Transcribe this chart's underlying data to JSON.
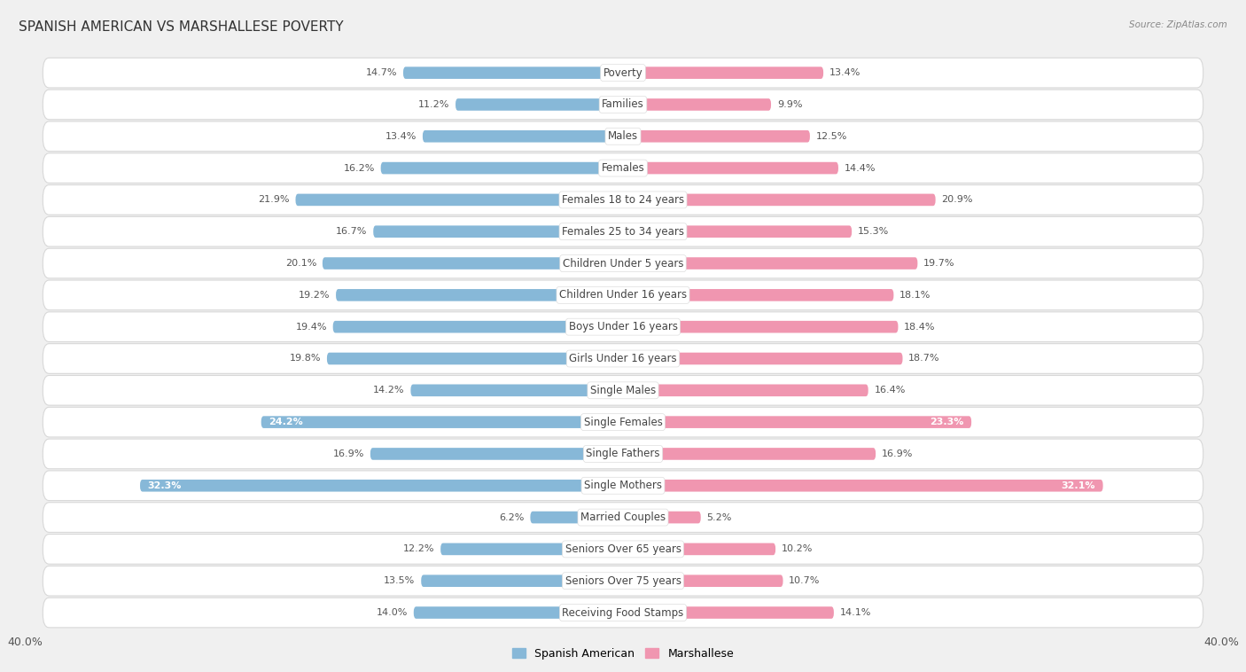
{
  "title": "SPANISH AMERICAN VS MARSHALLESE POVERTY",
  "source": "Source: ZipAtlas.com",
  "categories": [
    "Poverty",
    "Families",
    "Males",
    "Females",
    "Females 18 to 24 years",
    "Females 25 to 34 years",
    "Children Under 5 years",
    "Children Under 16 years",
    "Boys Under 16 years",
    "Girls Under 16 years",
    "Single Males",
    "Single Females",
    "Single Fathers",
    "Single Mothers",
    "Married Couples",
    "Seniors Over 65 years",
    "Seniors Over 75 years",
    "Receiving Food Stamps"
  ],
  "spanish_american": [
    14.7,
    11.2,
    13.4,
    16.2,
    21.9,
    16.7,
    20.1,
    19.2,
    19.4,
    19.8,
    14.2,
    24.2,
    16.9,
    32.3,
    6.2,
    12.2,
    13.5,
    14.0
  ],
  "marshallese": [
    13.4,
    9.9,
    12.5,
    14.4,
    20.9,
    15.3,
    19.7,
    18.1,
    18.4,
    18.7,
    16.4,
    23.3,
    16.9,
    32.1,
    5.2,
    10.2,
    10.7,
    14.1
  ],
  "spanish_color": "#87b8d8",
  "marshallese_color": "#f096b0",
  "spanish_label": "Spanish American",
  "marshallese_label": "Marshallese",
  "xlim": 40.0,
  "page_bg": "#f0f0f0",
  "row_bg": "#ffffff",
  "row_border": "#d8d8d8",
  "title_fontsize": 11,
  "label_fontsize": 8.5,
  "value_fontsize": 8,
  "source_fontsize": 7.5,
  "inside_threshold": 22,
  "inside_label_color": "#ffffff",
  "outside_label_color": "#555555"
}
